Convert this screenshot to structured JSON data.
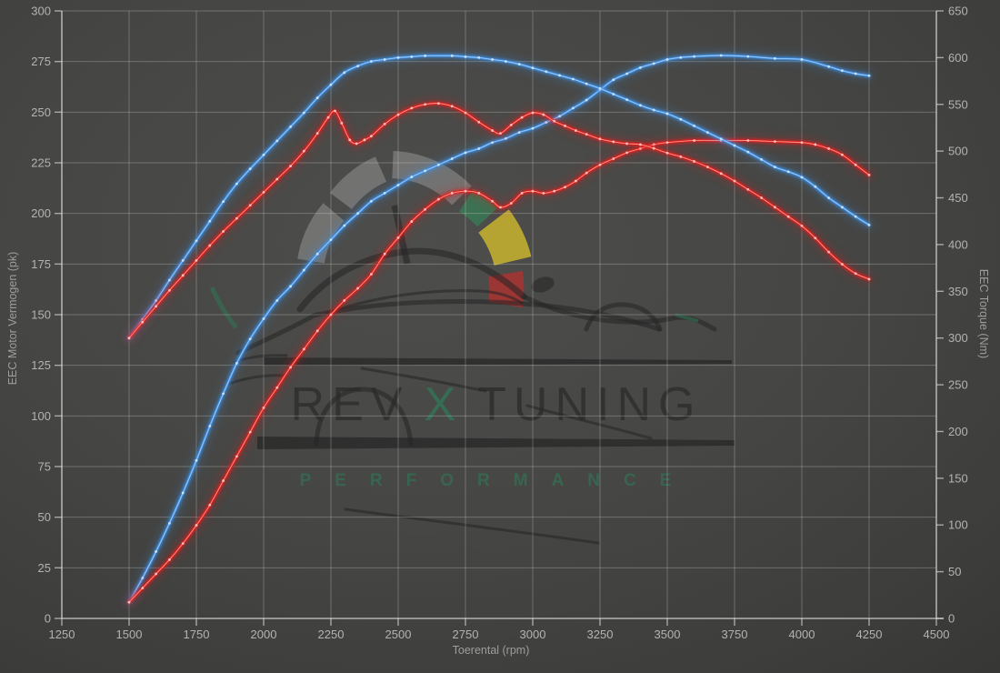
{
  "watermark": {
    "brand_left": "REV",
    "brand_accent": "X",
    "brand_right": "TUNING",
    "subtitle": "PERFORMANCE",
    "accent_color": "#2e7a58",
    "gauge": {
      "arc": "#a9a9a9",
      "green": "#3a7a55",
      "yellow": "#c9b42e",
      "red": "#a83430"
    }
  },
  "chart_data": {
    "type": "line",
    "xlabel": "Toerental (rpm)",
    "ylabel_left": "EEC Motor Vermogen (pk)",
    "ylabel_right": "EEC Torque (Nm)",
    "grid": true,
    "legend": "none",
    "x_axis": {
      "min": 1250,
      "max": 4500,
      "tick_step": 250
    },
    "y_left": {
      "min": 0,
      "max": 300,
      "tick_step": 25
    },
    "y_right": {
      "min": 0,
      "max": 650,
      "tick_step": 50
    },
    "colors": {
      "blue": "#3e92e8",
      "blue_core": "#a8cef8",
      "blue_marker": "#d2e7ff",
      "red": "#e41e1e",
      "red_core": "#ff9d8f",
      "red_marker": "#ffc9c4"
    },
    "series": [
      {
        "id": "power_blue",
        "unit": "pk",
        "axis": "left",
        "color_key": "blue",
        "points": [
          [
            1500,
            8
          ],
          [
            1550,
            20
          ],
          [
            1600,
            33
          ],
          [
            1650,
            47
          ],
          [
            1700,
            62
          ],
          [
            1750,
            78
          ],
          [
            1800,
            95
          ],
          [
            1850,
            111
          ],
          [
            1900,
            126
          ],
          [
            1950,
            138
          ],
          [
            2000,
            148
          ],
          [
            2050,
            157
          ],
          [
            2100,
            164
          ],
          [
            2150,
            172
          ],
          [
            2200,
            180
          ],
          [
            2250,
            187
          ],
          [
            2300,
            194
          ],
          [
            2350,
            200
          ],
          [
            2400,
            206
          ],
          [
            2450,
            210
          ],
          [
            2500,
            214
          ],
          [
            2550,
            218
          ],
          [
            2600,
            221
          ],
          [
            2650,
            224
          ],
          [
            2700,
            227
          ],
          [
            2750,
            230
          ],
          [
            2800,
            232
          ],
          [
            2850,
            235
          ],
          [
            2900,
            237
          ],
          [
            2950,
            240
          ],
          [
            3000,
            242
          ],
          [
            3050,
            245
          ],
          [
            3100,
            248
          ],
          [
            3150,
            252
          ],
          [
            3200,
            256
          ],
          [
            3250,
            261
          ],
          [
            3300,
            266
          ],
          [
            3350,
            269
          ],
          [
            3400,
            272
          ],
          [
            3450,
            274
          ],
          [
            3500,
            276
          ],
          [
            3550,
            277
          ],
          [
            3600,
            277.5
          ],
          [
            3700,
            278
          ],
          [
            3800,
            277.5
          ],
          [
            3900,
            276.5
          ],
          [
            4000,
            276
          ],
          [
            4100,
            272.5
          ],
          [
            4150,
            270.5
          ],
          [
            4200,
            269
          ],
          [
            4250,
            268
          ]
        ]
      },
      {
        "id": "power_red",
        "unit": "pk",
        "axis": "left",
        "color_key": "red",
        "points": [
          [
            1500,
            8
          ],
          [
            1550,
            15
          ],
          [
            1600,
            22
          ],
          [
            1650,
            29
          ],
          [
            1700,
            37
          ],
          [
            1750,
            46
          ],
          [
            1800,
            56
          ],
          [
            1850,
            68
          ],
          [
            1900,
            80
          ],
          [
            1950,
            92
          ],
          [
            2000,
            104
          ],
          [
            2050,
            114
          ],
          [
            2100,
            124
          ],
          [
            2150,
            133
          ],
          [
            2200,
            142
          ],
          [
            2250,
            150
          ],
          [
            2300,
            157
          ],
          [
            2350,
            163
          ],
          [
            2400,
            170
          ],
          [
            2450,
            180
          ],
          [
            2500,
            188
          ],
          [
            2550,
            196
          ],
          [
            2600,
            202
          ],
          [
            2650,
            207
          ],
          [
            2700,
            210
          ],
          [
            2750,
            211
          ],
          [
            2800,
            210
          ],
          [
            2850,
            206
          ],
          [
            2880,
            203
          ],
          [
            2920,
            205
          ],
          [
            2960,
            210
          ],
          [
            3000,
            211
          ],
          [
            3040,
            210
          ],
          [
            3080,
            211
          ],
          [
            3120,
            213
          ],
          [
            3160,
            216
          ],
          [
            3200,
            220
          ],
          [
            3250,
            224
          ],
          [
            3300,
            227
          ],
          [
            3350,
            230
          ],
          [
            3400,
            232
          ],
          [
            3450,
            234
          ],
          [
            3500,
            235
          ],
          [
            3600,
            236
          ],
          [
            3700,
            236
          ],
          [
            3800,
            236
          ],
          [
            3900,
            235.5
          ],
          [
            4000,
            235
          ],
          [
            4050,
            234
          ],
          [
            4100,
            232
          ],
          [
            4150,
            229
          ],
          [
            4200,
            224
          ],
          [
            4250,
            219
          ]
        ]
      },
      {
        "id": "torque_blue",
        "unit": "Nm",
        "axis": "right",
        "color_key": "blue",
        "points": [
          [
            1500,
            300
          ],
          [
            1550,
            320
          ],
          [
            1600,
            340
          ],
          [
            1650,
            362
          ],
          [
            1700,
            383
          ],
          [
            1750,
            404
          ],
          [
            1800,
            425
          ],
          [
            1850,
            446
          ],
          [
            1900,
            465
          ],
          [
            1950,
            481
          ],
          [
            2000,
            496
          ],
          [
            2050,
            511
          ],
          [
            2100,
            526
          ],
          [
            2150,
            541
          ],
          [
            2200,
            557
          ],
          [
            2250,
            571
          ],
          [
            2300,
            584
          ],
          [
            2350,
            591
          ],
          [
            2400,
            596
          ],
          [
            2450,
            598
          ],
          [
            2500,
            600
          ],
          [
            2550,
            601
          ],
          [
            2600,
            602
          ],
          [
            2700,
            602
          ],
          [
            2750,
            601
          ],
          [
            2800,
            600
          ],
          [
            2850,
            598
          ],
          [
            2900,
            596
          ],
          [
            2950,
            593
          ],
          [
            3000,
            589
          ],
          [
            3050,
            585
          ],
          [
            3100,
            581
          ],
          [
            3150,
            577
          ],
          [
            3200,
            572
          ],
          [
            3250,
            567
          ],
          [
            3300,
            561
          ],
          [
            3350,
            555
          ],
          [
            3400,
            549
          ],
          [
            3450,
            544
          ],
          [
            3500,
            540
          ],
          [
            3550,
            534
          ],
          [
            3600,
            527
          ],
          [
            3650,
            520
          ],
          [
            3700,
            513
          ],
          [
            3750,
            506
          ],
          [
            3800,
            499
          ],
          [
            3850,
            491
          ],
          [
            3900,
            483
          ],
          [
            3950,
            478
          ],
          [
            4000,
            472
          ],
          [
            4050,
            462
          ],
          [
            4100,
            450
          ],
          [
            4150,
            440
          ],
          [
            4200,
            430
          ],
          [
            4250,
            421
          ]
        ]
      },
      {
        "id": "torque_red",
        "unit": "Nm",
        "axis": "right",
        "color_key": "red",
        "points": [
          [
            1500,
            300
          ],
          [
            1550,
            317
          ],
          [
            1600,
            334
          ],
          [
            1650,
            351
          ],
          [
            1700,
            367
          ],
          [
            1750,
            383
          ],
          [
            1800,
            399
          ],
          [
            1850,
            414
          ],
          [
            1900,
            428
          ],
          [
            1950,
            442
          ],
          [
            2000,
            456
          ],
          [
            2050,
            470
          ],
          [
            2100,
            484
          ],
          [
            2150,
            500
          ],
          [
            2200,
            519
          ],
          [
            2240,
            536
          ],
          [
            2265,
            543
          ],
          [
            2290,
            530
          ],
          [
            2320,
            512
          ],
          [
            2345,
            508
          ],
          [
            2375,
            512
          ],
          [
            2400,
            516
          ],
          [
            2450,
            529
          ],
          [
            2500,
            539
          ],
          [
            2550,
            546
          ],
          [
            2600,
            550
          ],
          [
            2650,
            551
          ],
          [
            2700,
            548
          ],
          [
            2750,
            541
          ],
          [
            2800,
            531
          ],
          [
            2850,
            522
          ],
          [
            2880,
            519
          ],
          [
            2920,
            528
          ],
          [
            2960,
            536
          ],
          [
            3000,
            541
          ],
          [
            3040,
            539
          ],
          [
            3080,
            532
          ],
          [
            3120,
            527
          ],
          [
            3160,
            522
          ],
          [
            3200,
            518
          ],
          [
            3250,
            513
          ],
          [
            3300,
            510
          ],
          [
            3350,
            508
          ],
          [
            3400,
            507
          ],
          [
            3450,
            503
          ],
          [
            3500,
            498
          ],
          [
            3550,
            494
          ],
          [
            3600,
            489
          ],
          [
            3650,
            483
          ],
          [
            3700,
            476
          ],
          [
            3750,
            468
          ],
          [
            3800,
            459
          ],
          [
            3850,
            450
          ],
          [
            3900,
            440
          ],
          [
            3950,
            430
          ],
          [
            4000,
            420
          ],
          [
            4050,
            407
          ],
          [
            4100,
            392
          ],
          [
            4150,
            379
          ],
          [
            4200,
            369
          ],
          [
            4250,
            363
          ]
        ]
      }
    ]
  }
}
